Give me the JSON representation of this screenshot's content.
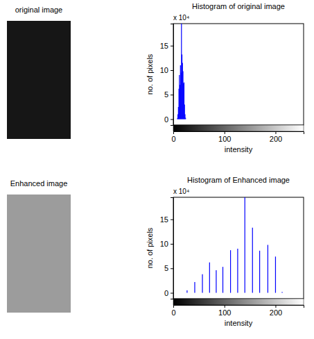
{
  "chart_data": [
    {
      "type": "image",
      "title": "original image",
      "color": "#161616"
    },
    {
      "type": "stem",
      "title": "Histogram of original image",
      "x_label": "intensity",
      "y_label": "no. of pixels",
      "annotations": [
        "x 10⁴"
      ],
      "x": [
        8,
        9,
        10,
        11,
        12,
        13,
        14,
        15,
        16,
        17,
        18,
        19,
        20,
        21,
        22,
        23,
        24
      ],
      "values": [
        0.2,
        1.0,
        2.5,
        6.2,
        9.0,
        7.0,
        11.0,
        9.5,
        19.5,
        13.2,
        11.5,
        9.8,
        7.3,
        7.5,
        3.0,
        1.0,
        0.3
      ],
      "color": "#0000ff",
      "xlim": [
        0,
        255
      ],
      "xticks": [
        0,
        100,
        200
      ],
      "ylim": [
        -1.2,
        19.5
      ],
      "yticks": [
        0,
        5,
        10,
        15
      ]
    },
    {
      "type": "image",
      "title": "Enhanced image",
      "color": "#9c9c9c"
    },
    {
      "type": "stem",
      "title": "Histogram of Enhanced image",
      "x_label": "intensity",
      "y_label": "no. of pixels",
      "annotations": [
        "x 10⁴"
      ],
      "x": [
        27,
        42,
        57,
        71,
        84,
        97,
        112,
        126,
        140,
        155,
        169,
        185,
        200,
        213
      ],
      "values": [
        0.5,
        2.2,
        3.8,
        6.2,
        4.6,
        5.3,
        8.7,
        9.0,
        19.5,
        13.3,
        8.6,
        9.8,
        7.4,
        0.2
      ],
      "color": "#0000ff",
      "xlim": [
        0,
        255
      ],
      "xticks": [
        0,
        100,
        200
      ],
      "ylim": [
        -1.2,
        19.5
      ],
      "yticks": [
        0,
        5,
        10,
        15
      ]
    }
  ]
}
